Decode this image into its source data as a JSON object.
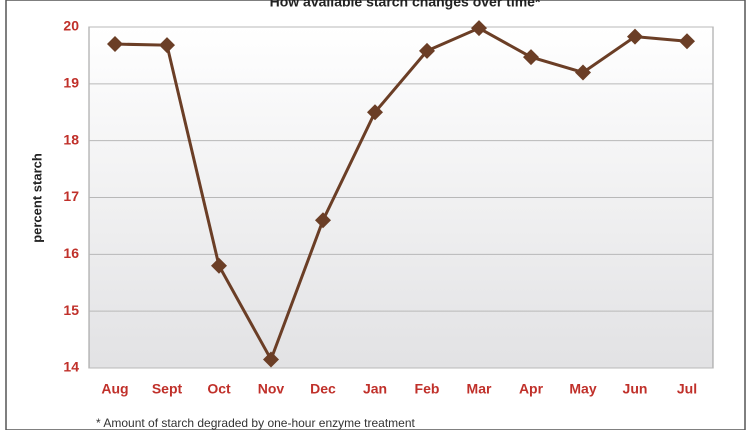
{
  "chart_data": {
    "type": "line",
    "title": "How available starch changes over time*",
    "y_label": "percent starch",
    "footnote": "* Amount of starch degraded by one-hour enzyme treatment",
    "categories": [
      "Aug",
      "Sept",
      "Oct",
      "Nov",
      "Dec",
      "Jan",
      "Feb",
      "Mar",
      "Apr",
      "May",
      "Jun",
      "Jul"
    ],
    "values": [
      19.7,
      19.68,
      15.8,
      14.15,
      16.6,
      18.5,
      19.58,
      19.98,
      19.47,
      19.2,
      19.83,
      19.75
    ],
    "color": "#6b3e26",
    "ylim": [
      14,
      20
    ],
    "yticks": [
      14,
      15,
      16,
      17,
      18,
      19,
      20
    ],
    "grid": true
  }
}
